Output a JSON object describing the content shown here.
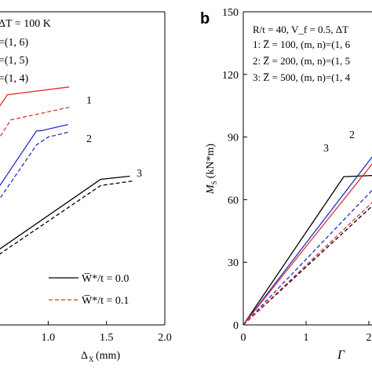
{
  "chart_data": [
    {
      "panel": "a",
      "type": "line",
      "xlabel": "Δ",
      "xlabel_sub": "X",
      "xlabel_unit": "(mm)",
      "xlim": [
        0.4,
        2.0
      ],
      "ylim": [
        0,
        1
      ],
      "x_ticks": [
        0.5,
        1.0,
        1.5,
        2.0
      ],
      "x_tick_labels": [
        ".5",
        "1.0",
        "1.5",
        "2.0"
      ],
      "annotations": [
        "ΔT = 100 K",
        "=(1, 6)",
        "=(1, 5)",
        "=(1, 4)"
      ],
      "curve_labels": [
        "1",
        "2",
        "3"
      ],
      "legend": [
        {
          "text": "W̅*/t = 0.0",
          "style": "solid"
        },
        {
          "text": "W̅*/t = 0.1",
          "style": "dashed"
        }
      ],
      "series": [
        {
          "curve": "1",
          "style": "solid",
          "color": "#e03030",
          "x": [
            0.4,
            0.45,
            0.65,
            1.18
          ],
          "y": [
            0.53,
            0.625,
            0.735,
            0.76
          ]
        },
        {
          "curve": "1",
          "style": "dashed",
          "color": "#e03030",
          "x": [
            0.4,
            0.5,
            0.68,
            1.18
          ],
          "y": [
            0.46,
            0.55,
            0.655,
            0.695
          ]
        },
        {
          "curve": "2",
          "style": "solid",
          "color": "#2030c0",
          "x": [
            0.4,
            0.45,
            0.9,
            0.94,
            1.17
          ],
          "y": [
            0.34,
            0.37,
            0.62,
            0.62,
            0.64
          ]
        },
        {
          "curve": "2",
          "style": "dashed",
          "color": "#2030c0",
          "x": [
            0.4,
            0.45,
            0.9,
            1.0,
            1.17
          ],
          "y": [
            0.31,
            0.33,
            0.575,
            0.6,
            0.615
          ]
        },
        {
          "curve": "3",
          "style": "solid",
          "color": "#000000",
          "x": [
            0.4,
            1.45,
            1.7
          ],
          "y": [
            0.195,
            0.465,
            0.475
          ]
        },
        {
          "curve": "3",
          "style": "dashed",
          "color": "#000000",
          "x": [
            0.4,
            1.45,
            1.73
          ],
          "y": [
            0.18,
            0.445,
            0.46
          ]
        }
      ]
    },
    {
      "panel": "b",
      "type": "line",
      "xlabel": "Γ",
      "ylabel": "M",
      "ylabel_sub": "S",
      "ylabel_unit": "(kN*m)",
      "xlim": [
        0,
        3.5
      ],
      "ylim": [
        0,
        150
      ],
      "x_ticks": [
        0,
        1,
        2
      ],
      "x_tick_labels": [
        "0",
        "1",
        "2"
      ],
      "y_ticks": [
        0,
        30,
        60,
        90,
        120,
        150
      ],
      "y_tick_labels": [
        "0",
        "30",
        "60",
        "90",
        "120",
        "150"
      ],
      "annotations": [
        "R/t = 40, V_f = 0.5, ΔT",
        "1: Z̅ = 100, (m, n)=(1, 6",
        "2: Z̅ = 200, (m, n)=(1, 5",
        "3: Z̅ = 500, (m, n)=(1, 4"
      ],
      "curve_labels": [
        "1",
        "2",
        "3"
      ],
      "series": [
        {
          "curve": "3",
          "style": "solid",
          "color": "#000000",
          "x": [
            0,
            1.6,
            2.4
          ],
          "y": [
            0,
            71,
            72
          ]
        },
        {
          "curve": "3",
          "style": "dashed",
          "color": "#000000",
          "x": [
            0,
            2.45
          ],
          "y": [
            0,
            68
          ]
        },
        {
          "curve": "2",
          "style": "solid",
          "color": "#2030c0",
          "x": [
            0,
            2.27,
            2.45
          ],
          "y": [
            0,
            89,
            89
          ]
        },
        {
          "curve": "2",
          "style": "dashed",
          "color": "#2030c0",
          "x": [
            0,
            2.45
          ],
          "y": [
            0,
            77
          ]
        },
        {
          "curve": "1",
          "style": "solid",
          "color": "#e03030",
          "x": [
            0,
            2.45
          ],
          "y": [
            0,
            92
          ]
        },
        {
          "curve": "1",
          "style": "dashed",
          "color": "#e03030",
          "x": [
            0,
            2.45
          ],
          "y": [
            0,
            70
          ]
        }
      ]
    }
  ],
  "panel_b_label": "b"
}
